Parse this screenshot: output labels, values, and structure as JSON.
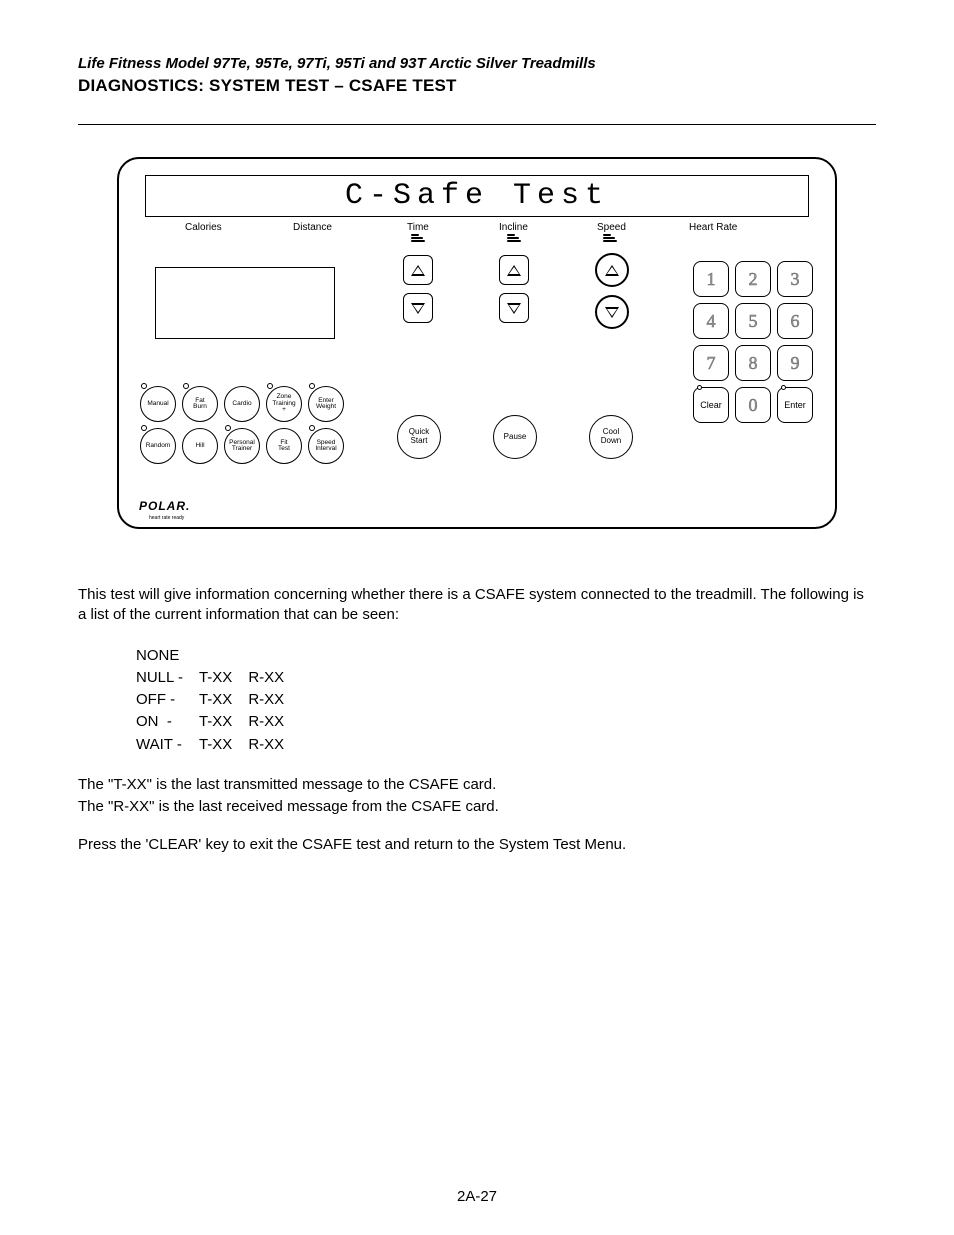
{
  "header": {
    "subtitle": "Life Fitness Model 97Te, 95Te, 97Ti, 95Ti and 93T Arctic Silver Treadmills",
    "title": "DIAGNOSTICS: SYSTEM TEST – CSAFE TEST"
  },
  "console": {
    "lcd_text": "C-Safe  Test",
    "metrics": {
      "calories": "Calories",
      "distance": "Distance",
      "time": "Time",
      "incline": "Incline",
      "speed": "Speed",
      "heartrate": "Heart Rate"
    },
    "program_buttons_row1": [
      "Manual",
      "Fat\nBurn",
      "Cardio",
      "Zone\nTraining\n+",
      "Enter\nWeight"
    ],
    "program_buttons_row2": [
      "Random",
      "Hill",
      "Personal\nTrainer",
      "Fit\nTest",
      "Speed\nInterval"
    ],
    "action_buttons": {
      "quick_start": "Quick\nStart",
      "pause": "Pause",
      "cool_down": "Cool\nDown"
    },
    "keypad": [
      "1",
      "2",
      "3",
      "4",
      "5",
      "6",
      "7",
      "8",
      "9",
      "Clear",
      "0",
      "Enter"
    ],
    "brand": "POLAR."
  },
  "body": {
    "intro": "This test will give information concerning whether there is a CSAFE system connected to the treadmill. The following is a list of the current information that can be seen:",
    "rows": [
      [
        "NONE",
        "",
        ""
      ],
      [
        "NULL -",
        "T-XX",
        "R-XX"
      ],
      [
        "OFF -",
        "T-XX",
        "R-XX"
      ],
      [
        "ON  -",
        "T-XX",
        "R-XX"
      ],
      [
        "WAIT -",
        "T-XX",
        "R-XX"
      ]
    ],
    "txx": "The \"T-XX\" is the last transmitted message to the CSAFE card.",
    "rxx": "The \"R-XX\" is the last received message from the CSAFE card.",
    "exit": "Press the 'CLEAR' key to exit the CSAFE test and return to the System Test Menu."
  },
  "page_number": "2A-27"
}
